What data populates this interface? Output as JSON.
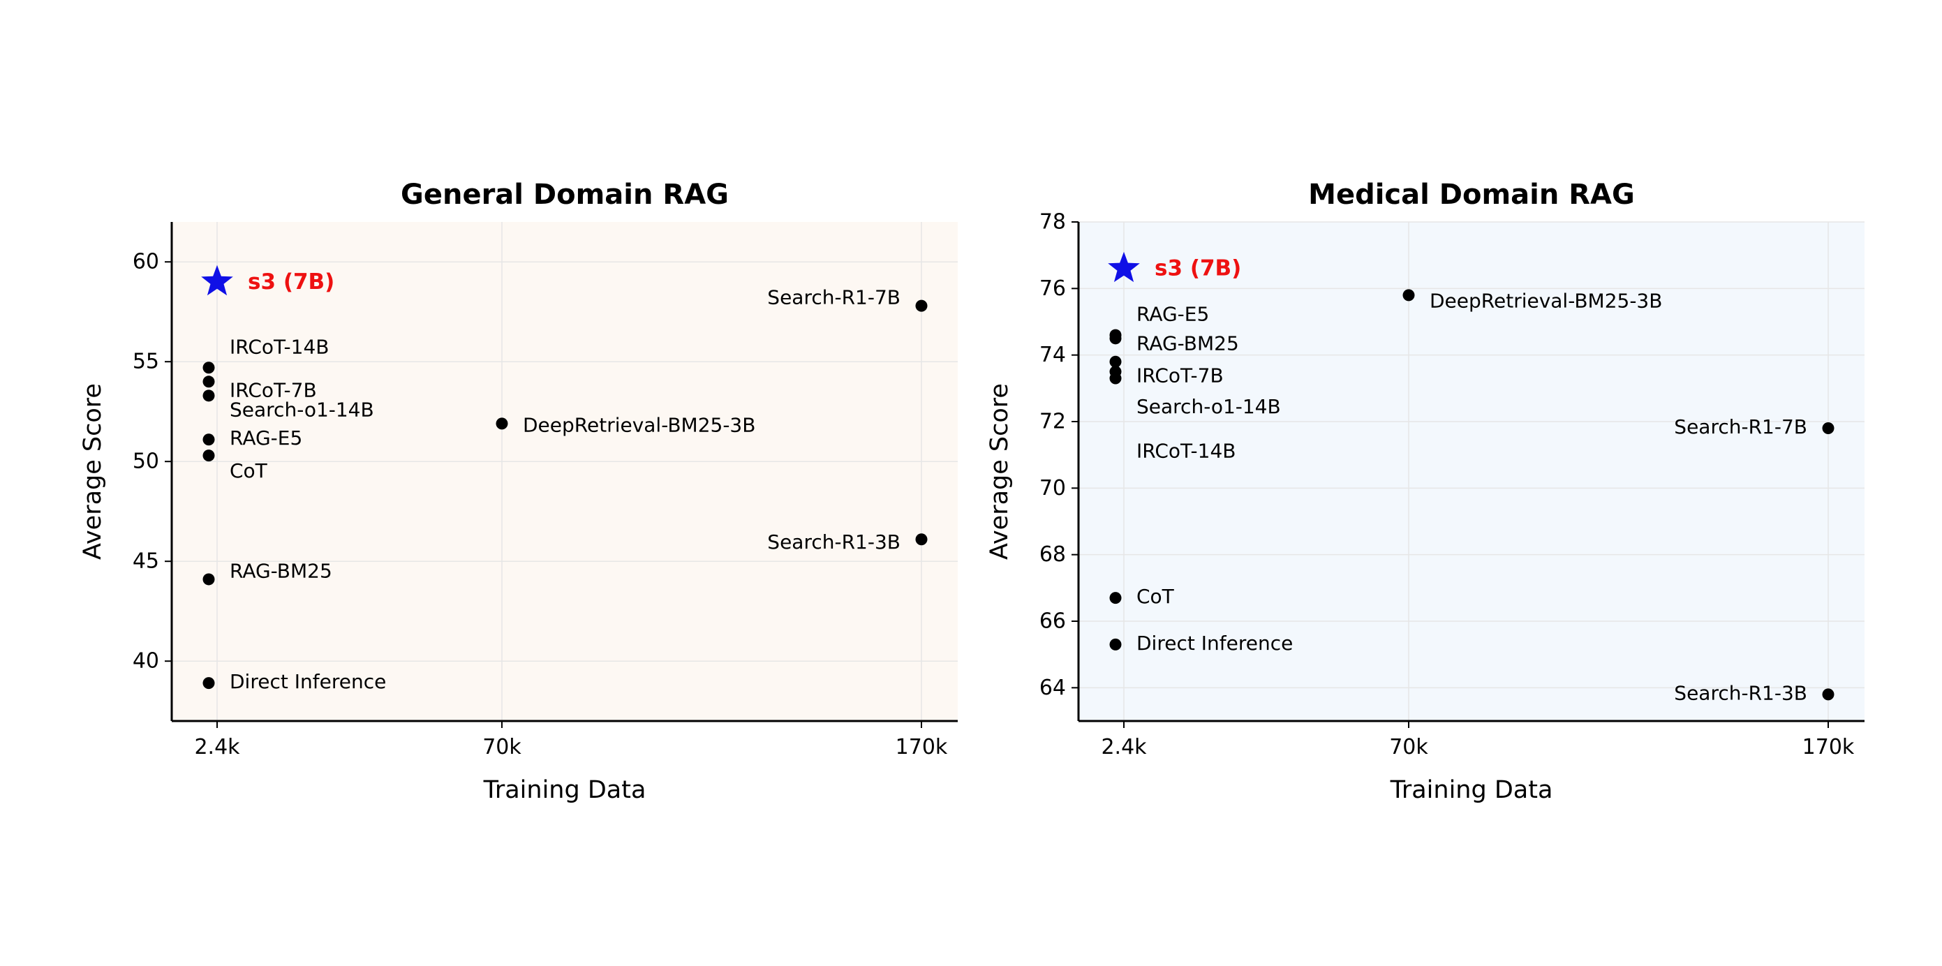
{
  "chart_data": [
    {
      "type": "scatter",
      "title": "General Domain RAG",
      "xlabel": "Training Data",
      "ylabel": "Average Score",
      "background": "#fdf8f3",
      "x_categories": [
        "2.4k",
        "70k",
        "170k"
      ],
      "ylim": [
        37,
        62
      ],
      "yticks": [
        40,
        45,
        50,
        55,
        60
      ],
      "grid": true,
      "highlight": {
        "label": "s3 (7B)",
        "x": "2.4k",
        "y": 59.0,
        "color": "#1010e6",
        "label_color": "#ee1111",
        "marker": "star"
      },
      "points": [
        {
          "label": "IRCoT-14B",
          "x": "2.4k",
          "y": 54.7
        },
        {
          "label": "IRCoT-7B",
          "x": "2.4k",
          "y": 54.0
        },
        {
          "label": "Search-o1-14B",
          "x": "2.4k",
          "y": 53.3
        },
        {
          "label": "RAG-E5",
          "x": "2.4k",
          "y": 51.1
        },
        {
          "label": "CoT",
          "x": "2.4k",
          "y": 50.3
        },
        {
          "label": "RAG-BM25",
          "x": "2.4k",
          "y": 44.1
        },
        {
          "label": "Direct Inference",
          "x": "2.4k",
          "y": 38.9
        },
        {
          "label": "DeepRetrieval-BM25-3B",
          "x": "70k",
          "y": 51.9
        },
        {
          "label": "Search-R1-7B",
          "x": "170k",
          "y": 57.8
        },
        {
          "label": "Search-R1-3B",
          "x": "170k",
          "y": 46.1
        }
      ]
    },
    {
      "type": "scatter",
      "title": "Medical Domain RAG",
      "xlabel": "Training Data",
      "ylabel": "Average Score",
      "background": "#f3f8fd",
      "x_categories": [
        "2.4k",
        "70k",
        "170k"
      ],
      "ylim": [
        63,
        78
      ],
      "yticks": [
        64,
        66,
        68,
        70,
        72,
        74,
        76,
        78
      ],
      "grid": true,
      "highlight": {
        "label": "s3 (7B)",
        "x": "2.4k",
        "y": 76.6,
        "color": "#1010e6",
        "label_color": "#ee1111",
        "marker": "star"
      },
      "points": [
        {
          "label": "RAG-E5",
          "x": "2.4k",
          "y": 74.6
        },
        {
          "label": "RAG-BM25",
          "x": "2.4k",
          "y": 74.5
        },
        {
          "label": "IRCoT-7B",
          "x": "2.4k",
          "y": 73.8
        },
        {
          "label": "Search-o1-14B",
          "x": "2.4k",
          "y": 73.5
        },
        {
          "label": "IRCoT-14B",
          "x": "2.4k",
          "y": 73.3
        },
        {
          "label": "CoT",
          "x": "2.4k",
          "y": 66.7
        },
        {
          "label": "Direct Inference",
          "x": "2.4k",
          "y": 65.3
        },
        {
          "label": "DeepRetrieval-BM25-3B",
          "x": "70k",
          "y": 75.8
        },
        {
          "label": "Search-R1-7B",
          "x": "170k",
          "y": 71.8
        },
        {
          "label": "Search-R1-3B",
          "x": "170k",
          "y": 63.8
        }
      ]
    }
  ]
}
